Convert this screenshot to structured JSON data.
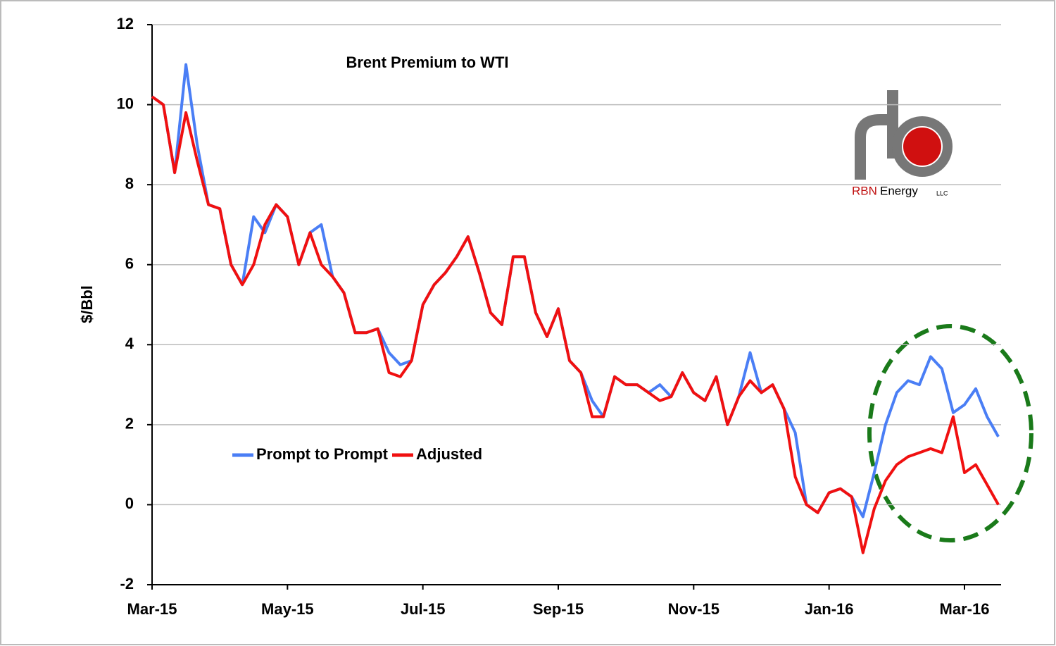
{
  "chart_data": {
    "type": "line",
    "title": "Brent Premium to WTI",
    "y_label": "$/Bbl",
    "categories": [
      "Mar-15",
      null,
      null,
      null,
      null,
      null,
      null,
      null,
      null,
      null,
      null,
      null,
      "May-15",
      null,
      null,
      null,
      null,
      null,
      null,
      null,
      null,
      null,
      null,
      null,
      "Jul-15",
      null,
      null,
      null,
      null,
      null,
      null,
      null,
      null,
      null,
      null,
      null,
      "Sep-15",
      null,
      null,
      null,
      null,
      null,
      null,
      null,
      null,
      null,
      null,
      null,
      "Nov-15",
      null,
      null,
      null,
      null,
      null,
      null,
      null,
      null,
      null,
      null,
      null,
      "Jan-16",
      null,
      null,
      null,
      null,
      null,
      null,
      null,
      null,
      null,
      null,
      null,
      "Mar-16",
      null,
      null,
      null
    ],
    "series": [
      {
        "name": "Prompt to Prompt",
        "color": "#4a7ef5",
        "values": [
          10.2,
          10.0,
          8.3,
          11.0,
          9.0,
          7.5,
          7.4,
          6.0,
          5.5,
          7.2,
          6.8,
          7.5,
          7.2,
          6.0,
          6.8,
          7.0,
          5.7,
          5.3,
          4.3,
          4.3,
          4.4,
          3.8,
          3.5,
          3.6,
          5.0,
          5.5,
          5.8,
          6.2,
          6.7,
          5.8,
          4.8,
          4.5,
          6.2,
          6.2,
          4.8,
          4.2,
          4.9,
          3.6,
          3.3,
          2.6,
          2.2,
          3.2,
          3.0,
          3.0,
          2.8,
          3.0,
          2.7,
          3.3,
          2.8,
          2.6,
          3.2,
          2.0,
          2.7,
          3.8,
          2.8,
          3.0,
          2.4,
          1.8,
          0.0,
          -0.2,
          0.3,
          0.4,
          0.2,
          -0.3,
          0.8,
          2.0,
          2.8,
          3.1,
          3.0,
          3.7,
          3.4,
          2.3,
          2.5,
          2.9,
          2.2,
          1.7
        ]
      },
      {
        "name": "Adjusted",
        "color": "#f01010",
        "values": [
          10.2,
          10.0,
          8.3,
          9.8,
          8.6,
          7.5,
          7.4,
          6.0,
          5.5,
          6.0,
          7.0,
          7.5,
          7.2,
          6.0,
          6.8,
          6.0,
          5.7,
          5.3,
          4.3,
          4.3,
          4.4,
          3.3,
          3.2,
          3.6,
          5.0,
          5.5,
          5.8,
          6.2,
          6.7,
          5.8,
          4.8,
          4.5,
          6.2,
          6.2,
          4.8,
          4.2,
          4.9,
          3.6,
          3.3,
          2.2,
          2.2,
          3.2,
          3.0,
          3.0,
          2.8,
          2.6,
          2.7,
          3.3,
          2.8,
          2.6,
          3.2,
          2.0,
          2.7,
          3.1,
          2.8,
          3.0,
          2.4,
          0.7,
          0.0,
          -0.2,
          0.3,
          0.4,
          0.2,
          -1.2,
          -0.1,
          0.6,
          1.0,
          1.2,
          1.3,
          1.4,
          1.3,
          2.2,
          0.8,
          1.0,
          0.5,
          0.0
        ]
      }
    ],
    "ylim": [
      -2,
      12
    ],
    "yticks": [
      -2,
      0,
      2,
      4,
      6,
      8,
      10,
      12
    ],
    "grid": true,
    "legend": "lower-left"
  },
  "logo": {
    "brand": "RBN",
    "name": "Energy",
    "suffix": "LLC"
  }
}
